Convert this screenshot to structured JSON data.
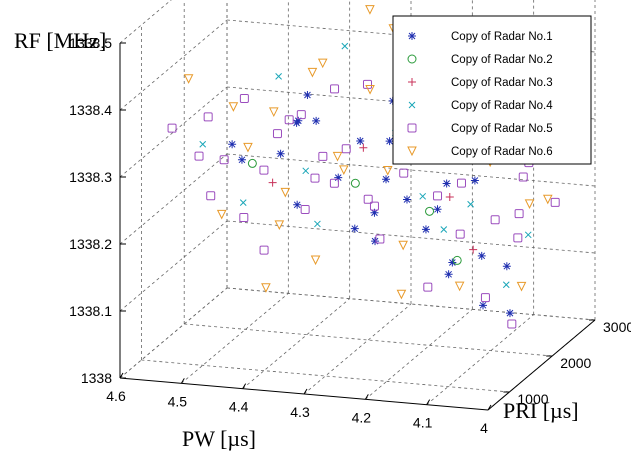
{
  "chart_data": {
    "type": "scatter",
    "projection": "3d",
    "xlabel": "PW [µs]",
    "ylabel": "PRI [µs]",
    "zlabel": "RF [MHz]",
    "xlim": [
      4.0,
      4.6
    ],
    "ylim": [
      500,
      3000
    ],
    "zlim": [
      1338.0,
      1338.5
    ],
    "x_ticks": [
      "4.6",
      "4.5",
      "4.4",
      "4.3",
      "4.2",
      "4.1",
      "4"
    ],
    "y_ticks": [
      "1000",
      "2000",
      "3000"
    ],
    "z_ticks": [
      "1338",
      "1338.1",
      "1338.2",
      "1338.3",
      "1338.4",
      "1338.5"
    ],
    "grid": true,
    "legend_position": "top-right",
    "series": [
      {
        "name": "Copy of Radar No.1",
        "marker": "star",
        "color": "#1f2fb0",
        "points": [
          [
            4.45,
            1200,
            1338.3
          ],
          [
            4.38,
            1100,
            1338.32
          ],
          [
            4.3,
            1300,
            1338.28
          ],
          [
            4.22,
            1000,
            1338.25
          ],
          [
            4.15,
            1200,
            1338.22
          ],
          [
            4.1,
            1100,
            1338.18
          ],
          [
            4.35,
            1500,
            1338.35
          ],
          [
            4.28,
            1400,
            1338.2
          ],
          [
            4.2,
            1600,
            1338.3
          ],
          [
            4.12,
            1300,
            1338.15
          ],
          [
            4.05,
            1100,
            1338.12
          ],
          [
            4.4,
            1800,
            1338.33
          ],
          [
            4.25,
            1700,
            1338.26
          ],
          [
            4.18,
            1900,
            1338.21
          ],
          [
            4.08,
            1500,
            1338.17
          ],
          [
            4.32,
            2100,
            1338.29
          ],
          [
            4.26,
            2000,
            1338.36
          ],
          [
            4.14,
            2200,
            1338.24
          ],
          [
            4.06,
            1800,
            1338.14
          ],
          [
            4.48,
            1400,
            1338.31
          ],
          [
            4.36,
            1200,
            1338.24
          ],
          [
            4.24,
            1300,
            1338.19
          ],
          [
            4.16,
            900,
            1338.28
          ],
          [
            4.02,
            1300,
            1338.1
          ],
          [
            4.42,
            2300,
            1338.34
          ],
          [
            4.3,
            2500,
            1338.27
          ],
          [
            4.2,
            2400,
            1338.22
          ],
          [
            4.1,
            2600,
            1338.3
          ],
          [
            4.34,
            900,
            1338.38
          ],
          [
            4.22,
            1500,
            1338.33
          ]
        ]
      },
      {
        "name": "Copy of Radar No.2",
        "marker": "circle",
        "color": "#2a9a3a",
        "points": [
          [
            4.44,
            1300,
            1338.29
          ],
          [
            4.3,
            1700,
            1338.25
          ],
          [
            4.2,
            2000,
            1338.2
          ],
          [
            4.12,
            1500,
            1338.16
          ]
        ]
      },
      {
        "name": "Copy of Radar No.3",
        "marker": "plus",
        "color": "#c8325a",
        "points": [
          [
            4.4,
            1200,
            1338.27
          ],
          [
            4.28,
            1600,
            1338.31
          ],
          [
            4.16,
            1900,
            1338.23
          ],
          [
            4.08,
            1300,
            1338.19
          ]
        ]
      },
      {
        "name": "Copy of Radar No.4",
        "marker": "x",
        "color": "#1aa6b8",
        "points": [
          [
            4.5,
            1000,
            1338.33
          ],
          [
            4.36,
            1400,
            1338.28
          ],
          [
            4.24,
            1800,
            1338.35
          ],
          [
            4.14,
            2100,
            1338.21
          ],
          [
            4.04,
            1500,
            1338.13
          ],
          [
            4.46,
            2200,
            1338.37
          ],
          [
            4.32,
            1100,
            1338.22
          ],
          [
            4.18,
            2500,
            1338.29
          ],
          [
            4.1,
            900,
            1338.24
          ],
          [
            4.26,
            2700,
            1338.18
          ],
          [
            4.38,
            2600,
            1338.4
          ],
          [
            4.06,
            2300,
            1338.16
          ],
          [
            4.42,
            800,
            1338.26
          ],
          [
            4.2,
            1200,
            1338.36
          ],
          [
            4.12,
            2800,
            1338.27
          ]
        ]
      },
      {
        "name": "Copy of Radar No.5",
        "marker": "square",
        "color": "#9b4dbe",
        "points": [
          [
            4.55,
            1000,
            1338.35
          ],
          [
            4.52,
            1200,
            1338.3
          ],
          [
            4.48,
            900,
            1338.26
          ],
          [
            4.46,
            1400,
            1338.38
          ],
          [
            4.44,
            1100,
            1338.22
          ],
          [
            4.42,
            1600,
            1338.32
          ],
          [
            4.4,
            1000,
            1338.18
          ],
          [
            4.38,
            1300,
            1338.36
          ],
          [
            4.36,
            1800,
            1338.28
          ],
          [
            4.34,
            1100,
            1338.24
          ],
          [
            4.32,
            1500,
            1338.4
          ],
          [
            4.3,
            2000,
            1338.21
          ],
          [
            4.28,
            1200,
            1338.33
          ],
          [
            4.26,
            1700,
            1338.17
          ],
          [
            4.24,
            2200,
            1338.29
          ],
          [
            4.22,
            1000,
            1338.26
          ],
          [
            4.2,
            1400,
            1338.35
          ],
          [
            4.18,
            1900,
            1338.23
          ],
          [
            4.16,
            2400,
            1338.3
          ],
          [
            4.14,
            1100,
            1338.14
          ],
          [
            4.12,
            1600,
            1338.27
          ],
          [
            4.1,
            2100,
            1338.19
          ],
          [
            4.08,
            2600,
            1338.25
          ],
          [
            4.06,
            1300,
            1338.12
          ],
          [
            4.04,
            1800,
            1338.22
          ],
          [
            4.5,
            1500,
            1338.28
          ],
          [
            4.54,
            1700,
            1338.33
          ],
          [
            4.47,
            2000,
            1338.24
          ],
          [
            4.43,
            2300,
            1338.31
          ],
          [
            4.39,
            2500,
            1338.2
          ],
          [
            4.35,
            2700,
            1338.34
          ],
          [
            4.31,
            900,
            1338.3
          ],
          [
            4.27,
            2400,
            1338.23
          ],
          [
            4.23,
            2600,
            1338.32
          ],
          [
            4.19,
            2800,
            1338.26
          ],
          [
            4.15,
            2000,
            1338.17
          ],
          [
            4.11,
            2900,
            1338.21
          ],
          [
            4.07,
            2200,
            1338.16
          ],
          [
            4.03,
            2500,
            1338.2
          ],
          [
            4.01,
            1200,
            1338.09
          ]
        ]
      },
      {
        "name": "Copy of Radar No.6",
        "marker": "triangle-down",
        "color": "#e89a2a",
        "points": [
          [
            4.53,
            1100,
            1338.42
          ],
          [
            4.49,
            1300,
            1338.21
          ],
          [
            4.45,
            1000,
            1338.39
          ],
          [
            4.41,
            1500,
            1338.19
          ],
          [
            4.37,
            1700,
            1338.41
          ],
          [
            4.33,
            1200,
            1338.16
          ],
          [
            4.29,
            1900,
            1338.38
          ],
          [
            4.25,
            2100,
            1338.14
          ],
          [
            4.21,
            1400,
            1338.37
          ],
          [
            4.17,
            2300,
            1338.33
          ],
          [
            4.13,
            1700,
            1338.11
          ],
          [
            4.09,
            2500,
            1338.35
          ],
          [
            4.05,
            2000,
            1338.1
          ],
          [
            4.02,
            2700,
            1338.3
          ],
          [
            4.51,
            2200,
            1338.26
          ],
          [
            4.47,
            2500,
            1338.18
          ],
          [
            4.43,
            2800,
            1338.36
          ],
          [
            4.39,
            900,
            1338.13
          ],
          [
            4.35,
            2000,
            1338.27
          ],
          [
            4.31,
            2600,
            1338.22
          ],
          [
            4.27,
            1000,
            1338.31
          ],
          [
            4.23,
            2900,
            1338.28
          ],
          [
            4.19,
            1200,
            1338.12
          ],
          [
            4.15,
            2700,
            1338.24
          ],
          [
            4.11,
            1600,
            1338.32
          ],
          [
            4.07,
            2900,
            1338.18
          ],
          [
            4.03,
            1900,
            1338.23
          ],
          [
            4.36,
            2900,
            1338.44
          ],
          [
            4.28,
            2300,
            1338.45
          ],
          [
            4.44,
            1800,
            1338.34
          ]
        ]
      }
    ]
  }
}
